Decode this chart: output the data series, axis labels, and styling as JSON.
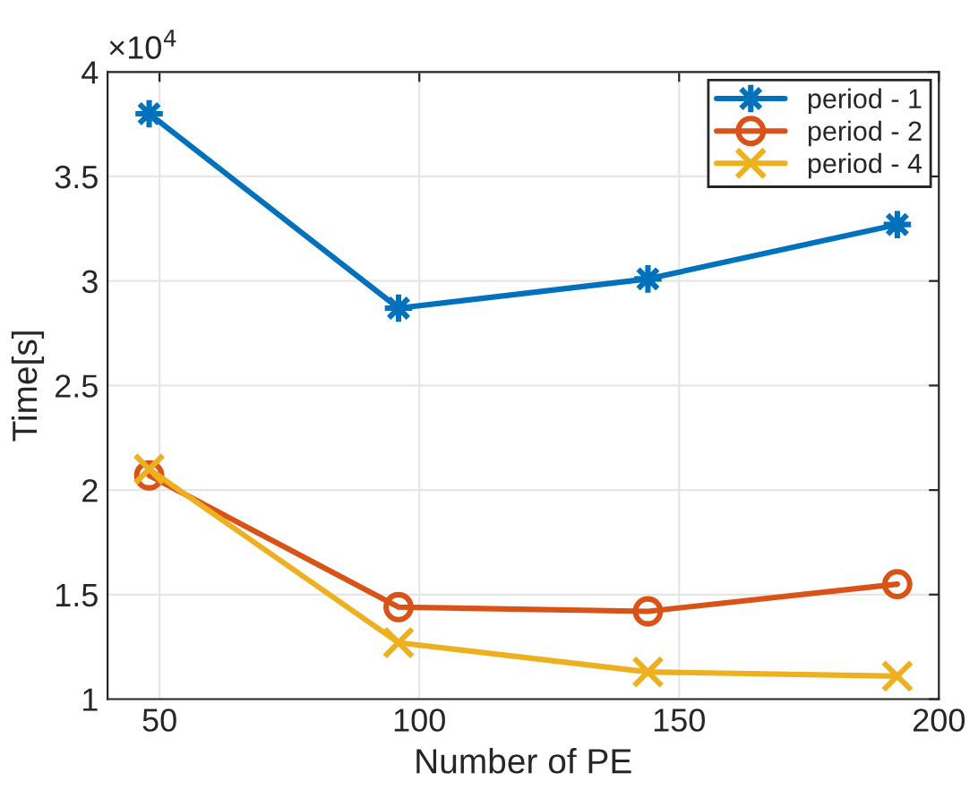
{
  "chart_data": {
    "type": "line",
    "xlabel": "Number of PE",
    "ylabel": "Time[s]",
    "annotations": [
      "×10$^{4}$"
    ],
    "x": [
      48,
      96,
      144,
      192
    ],
    "series": [
      {
        "name": "period - 1",
        "color": "#0072bd",
        "marker": "star",
        "values": [
          3.8,
          2.87,
          3.01,
          3.27
        ]
      },
      {
        "name": "period - 2",
        "color": "#d95319",
        "marker": "circle",
        "values": [
          2.07,
          1.44,
          1.42,
          1.55
        ]
      },
      {
        "name": "period - 4",
        "color": "#edb120",
        "marker": "cross",
        "values": [
          2.1,
          1.27,
          1.13,
          1.11
        ]
      }
    ],
    "xlim": [
      40,
      200
    ],
    "xticks": [
      50,
      100,
      150,
      200
    ],
    "ylim": [
      1,
      4
    ],
    "yticks": [
      1,
      1.5,
      2,
      2.5,
      3,
      3.5,
      4
    ],
    "grid": true,
    "legend": "top right",
    "line_style": "solid"
  }
}
